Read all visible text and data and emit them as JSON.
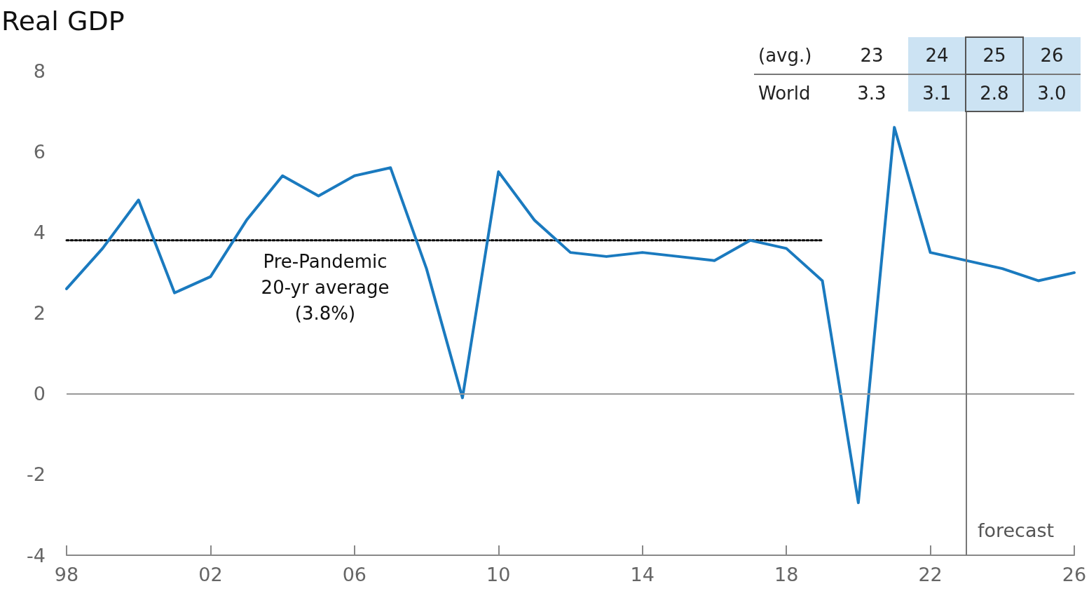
{
  "chart_data": {
    "type": "line",
    "title": "Real GDP",
    "x": [
      1998,
      1999,
      2000,
      2001,
      2002,
      2003,
      2004,
      2005,
      2006,
      2007,
      2008,
      2009,
      2010,
      2011,
      2012,
      2013,
      2014,
      2015,
      2016,
      2017,
      2018,
      2019,
      2020,
      2021,
      2022,
      2023,
      2024,
      2025,
      2026
    ],
    "series": [
      {
        "color": "#1a7abf",
        "line_style": "solid",
        "values": [
          2.6,
          3.6,
          4.8,
          2.5,
          2.9,
          4.3,
          5.4,
          4.9,
          5.4,
          5.6,
          3.1,
          -0.1,
          5.5,
          4.3,
          3.5,
          3.4,
          3.5,
          3.4,
          3.3,
          3.8,
          3.6,
          2.8,
          -2.7,
          6.6,
          3.5,
          3.3,
          3.1,
          2.8,
          3.0
        ]
      },
      {
        "color": "#000000",
        "line_style": "dotted",
        "x": [
          1998,
          2019
        ],
        "values": [
          3.8,
          3.8
        ]
      }
    ],
    "marker": "none",
    "xlim": [
      1998,
      2026
    ],
    "xticks": [
      {
        "value": 1998,
        "label": "98"
      },
      {
        "value": 2002,
        "label": "02"
      },
      {
        "value": 2006,
        "label": "06"
      },
      {
        "value": 2010,
        "label": "10"
      },
      {
        "value": 2014,
        "label": "14"
      },
      {
        "value": 2018,
        "label": "18"
      },
      {
        "value": 2022,
        "label": "22"
      },
      {
        "value": 2026,
        "label": "26"
      }
    ],
    "ylim": [
      -4,
      8
    ],
    "yticks": [
      -4,
      -2,
      0,
      2,
      4,
      6,
      8
    ],
    "grid": false,
    "ref_lines": [
      {
        "axis": "y",
        "value": 0,
        "color": "#999999"
      },
      {
        "axis": "x",
        "value": 2023,
        "label": "forecast",
        "color": "#777777"
      }
    ],
    "annotations": [
      "Pre-Pandemic\n20-yr average\n(3.8%)",
      "(avg.)",
      "23",
      "24",
      "25",
      "26",
      "World",
      "3.3",
      "3.1",
      "2.8",
      "3.0"
    ]
  }
}
